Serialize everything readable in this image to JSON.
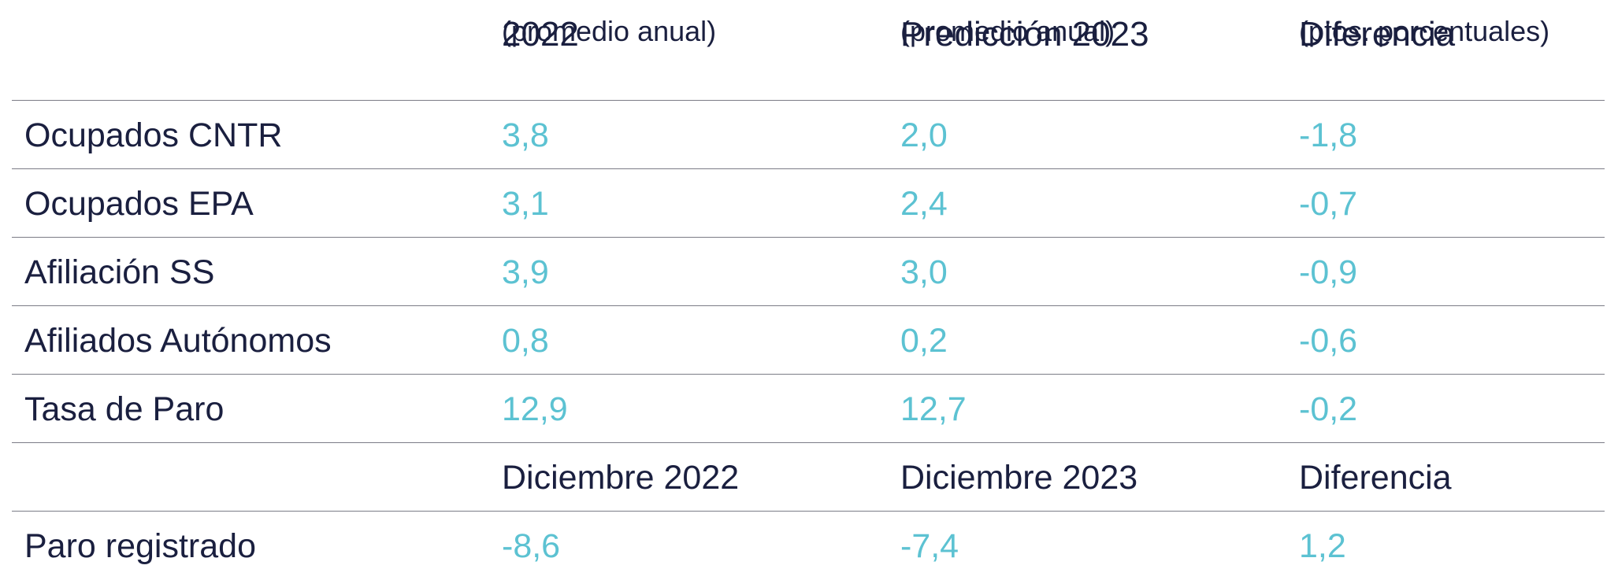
{
  "header": {
    "col1_title": "2022",
    "col1_sub": "(promedio anual)",
    "col2_title": "Predicción 2023",
    "col2_sub": "(promedio anual)",
    "col3_title": "Diferencia",
    "col3_sub": "(ptos. porcentuales)"
  },
  "rows": [
    {
      "label": "Ocupados CNTR",
      "v1": "3,8",
      "v2": "2,0",
      "v3": "-1,8"
    },
    {
      "label": "Ocupados EPA",
      "v1": "3,1",
      "v2": "2,4",
      "v3": "-0,7"
    },
    {
      "label": "Afiliación SS",
      "v1": "3,9",
      "v2": "3,0",
      "v3": "-0,9"
    },
    {
      "label": "Afiliados Autónomos",
      "v1": "0,8",
      "v2": "0,2",
      "v3": "-0,6"
    },
    {
      "label": "Tasa de Paro",
      "v1": "12,9",
      "v2": "12,7",
      "v3": "-0,2"
    }
  ],
  "subheader": {
    "col1": "Diciembre 2022",
    "col2": "Diciembre 2023",
    "col3": "Diferencia"
  },
  "last_row": {
    "label": "Paro registrado",
    "v1": "-8,6",
    "v2": "-7,4",
    "v3": "1,2"
  },
  "colors": {
    "text": "#1a1f3f",
    "value": "#5cc2d2",
    "rule": "#7b7c86"
  }
}
